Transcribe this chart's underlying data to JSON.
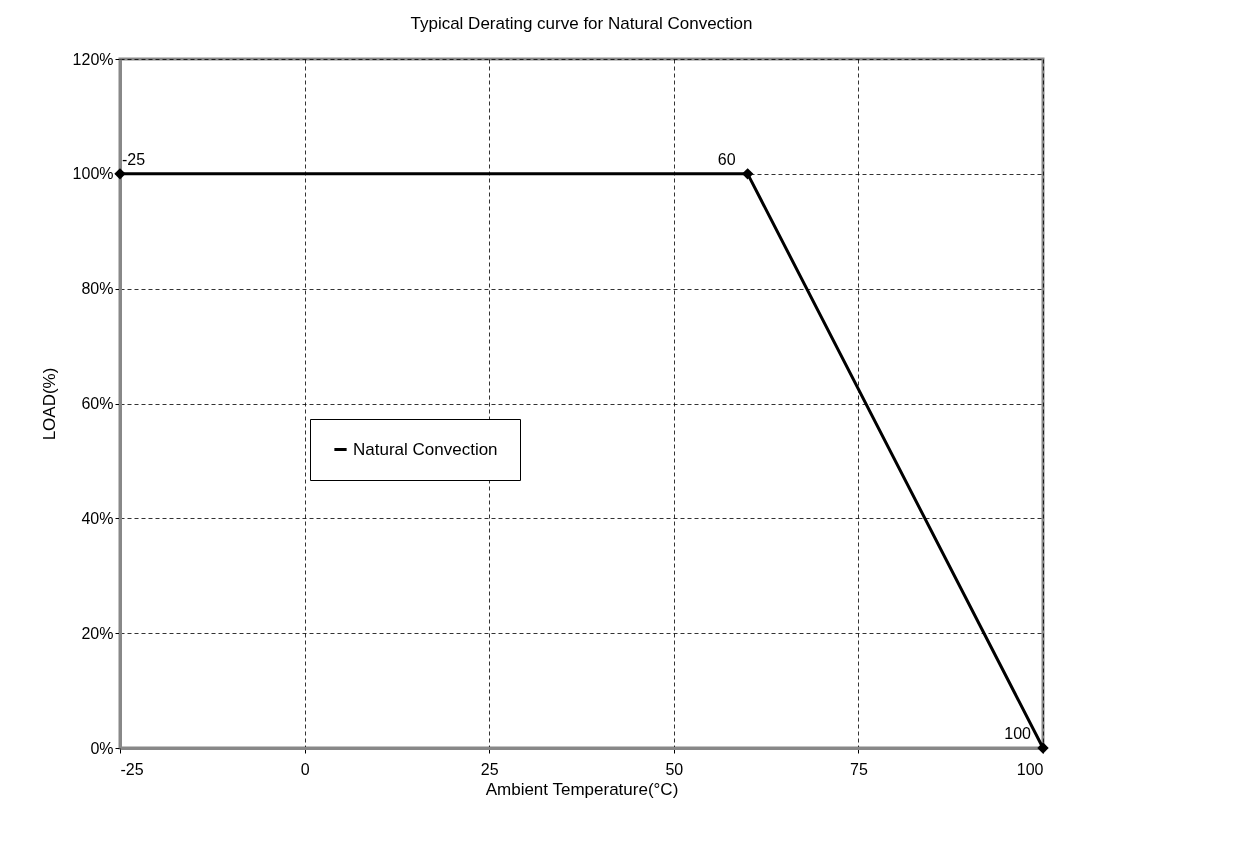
{
  "chart_data": {
    "type": "line",
    "title": "Typical Derating curve for Natural Convection",
    "xlabel": "Ambient Temperature(°C)",
    "ylabel": "LOAD(%)",
    "x": [
      -25,
      60,
      100
    ],
    "series": [
      {
        "name": "Natural Convection",
        "color": "#000000",
        "values": [
          100,
          100,
          0
        ]
      }
    ],
    "xlim": [
      -25,
      100
    ],
    "xticks": [
      -25,
      0,
      25,
      50,
      75,
      100
    ],
    "ylim": [
      0,
      120
    ],
    "yticks": [
      {
        "value": 0,
        "label": "0%"
      },
      {
        "value": 20,
        "label": "20%"
      },
      {
        "value": 40,
        "label": "40%"
      },
      {
        "value": 60,
        "label": "60%"
      },
      {
        "value": 80,
        "label": "80%"
      },
      {
        "value": 100,
        "label": "100%"
      },
      {
        "value": 120,
        "label": "120%"
      }
    ],
    "annotations": [
      {
        "text": "-25",
        "x": -25,
        "y": 100
      },
      {
        "text": "60",
        "x": 60,
        "y": 100
      },
      {
        "text": "100",
        "x": 100,
        "y": 0
      }
    ],
    "grid": true,
    "legend": "left",
    "marker": "diamond",
    "line_style": "solid"
  }
}
